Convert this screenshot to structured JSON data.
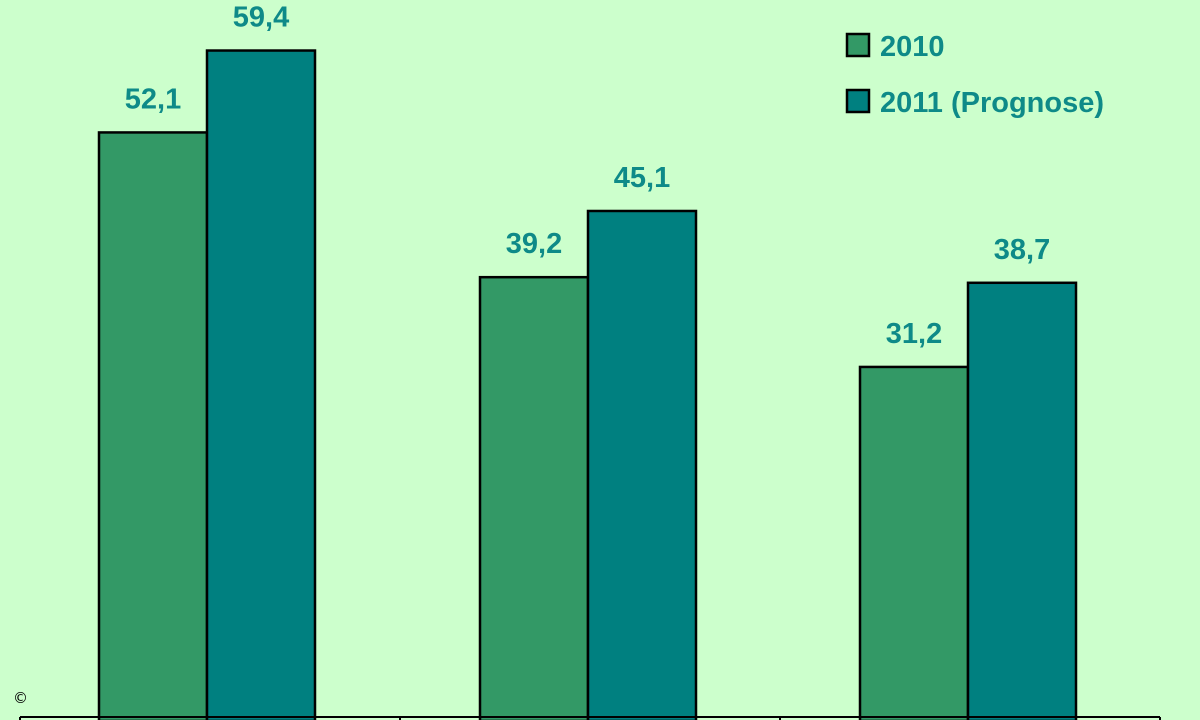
{
  "chart_data": {
    "type": "bar",
    "categories": [
      "",
      "",
      ""
    ],
    "series": [
      {
        "name": "2010",
        "values": [
          52.1,
          39.2,
          31.2
        ]
      },
      {
        "name": "2011 (Prognose)",
        "values": [
          59.4,
          45.1,
          38.7
        ]
      }
    ],
    "data_labels": [
      [
        "52,1",
        "39,2",
        "31,2"
      ],
      [
        "59,4",
        "45,1",
        "38,7"
      ]
    ],
    "ylim": [
      0,
      62
    ],
    "legend_position": "top-right",
    "grid": false,
    "colors": {
      "background": "#CCFFCC",
      "series_2010": "#339966",
      "series_2011": "#008080",
      "label_text": "#0E8A88",
      "outline": "#000000"
    }
  },
  "copyright_symbol": "©"
}
